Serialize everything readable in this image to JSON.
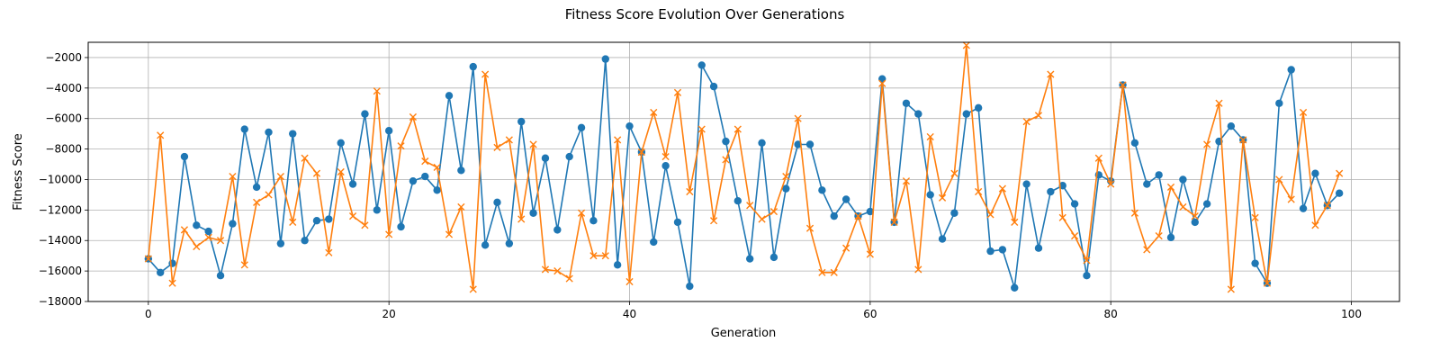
{
  "chart_data": {
    "type": "line",
    "title": "Fitness Score Evolution Over Generations",
    "xlabel": "Generation",
    "ylabel": "Fitness Score",
    "xlim": [
      -5,
      104
    ],
    "ylim": [
      -18000,
      -1000
    ],
    "xticks": [
      0,
      20,
      40,
      60,
      80,
      100
    ],
    "yticks": [
      -18000,
      -16000,
      -14000,
      -12000,
      -10000,
      -8000,
      -6000,
      -4000,
      -2000
    ],
    "grid": true,
    "x": [
      0,
      1,
      2,
      3,
      4,
      5,
      6,
      7,
      8,
      9,
      10,
      11,
      12,
      13,
      14,
      15,
      16,
      17,
      18,
      19,
      20,
      21,
      22,
      23,
      24,
      25,
      26,
      27,
      28,
      29,
      30,
      31,
      32,
      33,
      34,
      35,
      36,
      37,
      38,
      39,
      40,
      41,
      42,
      43,
      44,
      45,
      46,
      47,
      48,
      49,
      50,
      51,
      52,
      53,
      54,
      55,
      56,
      57,
      58,
      59,
      60,
      61,
      62,
      63,
      64,
      65,
      66,
      67,
      68,
      69,
      70,
      71,
      72,
      73,
      74,
      75,
      76,
      77,
      78,
      79,
      80,
      81,
      82,
      83,
      84,
      85,
      86,
      87,
      88,
      89,
      90,
      91,
      92,
      93,
      94,
      95,
      96,
      97,
      98,
      99
    ],
    "series": [
      {
        "color": "#1f77b4",
        "marker": "circle",
        "values": [
          -15200,
          -16100,
          -15500,
          -8500,
          -13000,
          -13400,
          -16300,
          -12900,
          -6700,
          -10500,
          -6900,
          -14200,
          -7000,
          -14000,
          -12700,
          -12600,
          -7600,
          -10300,
          -5700,
          -12000,
          -6800,
          -13100,
          -10100,
          -9800,
          -10700,
          -4500,
          -9400,
          -2600,
          -14300,
          -11500,
          -14200,
          -6200,
          -12200,
          -8600,
          -13300,
          -8500,
          -6600,
          -12700,
          -2100,
          -15600,
          -6500,
          -8200,
          -14100,
          -9100,
          -12800,
          -17000,
          -2500,
          -3900,
          -7500,
          -11400,
          -15200,
          -7600,
          -15100,
          -10600,
          -7700,
          -7700,
          -10700,
          -12400,
          -11300,
          -12400,
          -12100,
          -3400,
          -12800,
          -5000,
          -5700,
          -11000,
          -13900,
          -12200,
          -5700,
          -5300,
          -14700,
          -14600,
          -17100,
          -10300,
          -14500,
          -10800,
          -10400,
          -11600,
          -16300,
          -9700,
          -10100,
          -3800,
          -7600,
          -10300,
          -9700,
          -13800,
          -10000,
          -12800,
          -11600,
          -7500,
          -6500,
          -7400,
          -15500,
          -16800,
          -5000,
          -2800,
          -11900,
          -9600,
          -11700,
          -10900
        ]
      },
      {
        "color": "#ff7f0e",
        "marker": "x",
        "values": [
          -15200,
          -7100,
          -16800,
          -13300,
          -14400,
          -13800,
          -14000,
          -9800,
          -15600,
          -11500,
          -11000,
          -9800,
          -12800,
          -8600,
          -9600,
          -14800,
          -9500,
          -12400,
          -13000,
          -4200,
          -13600,
          -7800,
          -5900,
          -8800,
          -9200,
          -13600,
          -11800,
          -17200,
          -3100,
          -7900,
          -7400,
          -12600,
          -7700,
          -15900,
          -16000,
          -16500,
          -12200,
          -15000,
          -15000,
          -7400,
          -16700,
          -8200,
          -5600,
          -8500,
          -4300,
          -10800,
          -6700,
          -12700,
          -8700,
          -6700,
          -11700,
          -12600,
          -12100,
          -9800,
          -6000,
          -13200,
          -16100,
          -16100,
          -14500,
          -12400,
          -14900,
          -3700,
          -12800,
          -10100,
          -15900,
          -7200,
          -11200,
          -9600,
          -1200,
          -10800,
          -12300,
          -10600,
          -12800,
          -6200,
          -5800,
          -3100,
          -12500,
          -13700,
          -15300,
          -8600,
          -10300,
          -3800,
          -12200,
          -14600,
          -13700,
          -10500,
          -11800,
          -12400,
          -7700,
          -5000,
          -17200,
          -7400,
          -12500,
          -16800,
          -10000,
          -11300,
          -5600,
          -13000,
          -11700,
          -9600
        ]
      }
    ]
  }
}
